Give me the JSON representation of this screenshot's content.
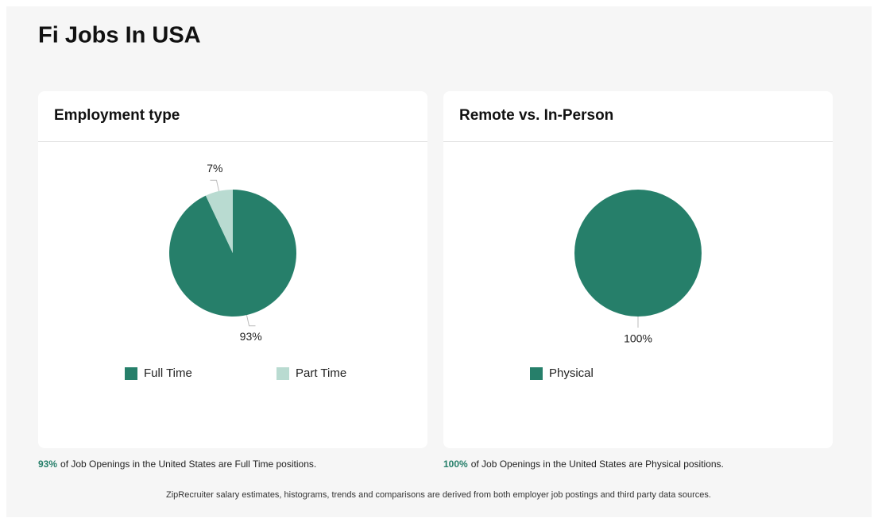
{
  "title": "Fi Jobs In USA",
  "chart_data": [
    {
      "type": "pie",
      "title": "Employment type",
      "categories": [
        "Full Time",
        "Part Time"
      ],
      "values": [
        93,
        7
      ],
      "value_labels": [
        "93%",
        "7%"
      ],
      "colors": [
        "#267f6a",
        "#b9dbd1"
      ]
    },
    {
      "type": "pie",
      "title": "Remote vs. In-Person",
      "categories": [
        "Physical"
      ],
      "values": [
        100
      ],
      "value_labels": [
        "100%"
      ],
      "colors": [
        "#267f6a"
      ]
    }
  ],
  "captions": [
    {
      "highlight": "93%",
      "text": "of Job Openings in the United States are Full Time positions."
    },
    {
      "highlight": "100%",
      "text": "of Job Openings in the United States are Physical positions."
    }
  ],
  "footer": "ZipRecruiter salary estimates, histograms, trends and comparisons are derived from both employer job postings and third party data sources."
}
